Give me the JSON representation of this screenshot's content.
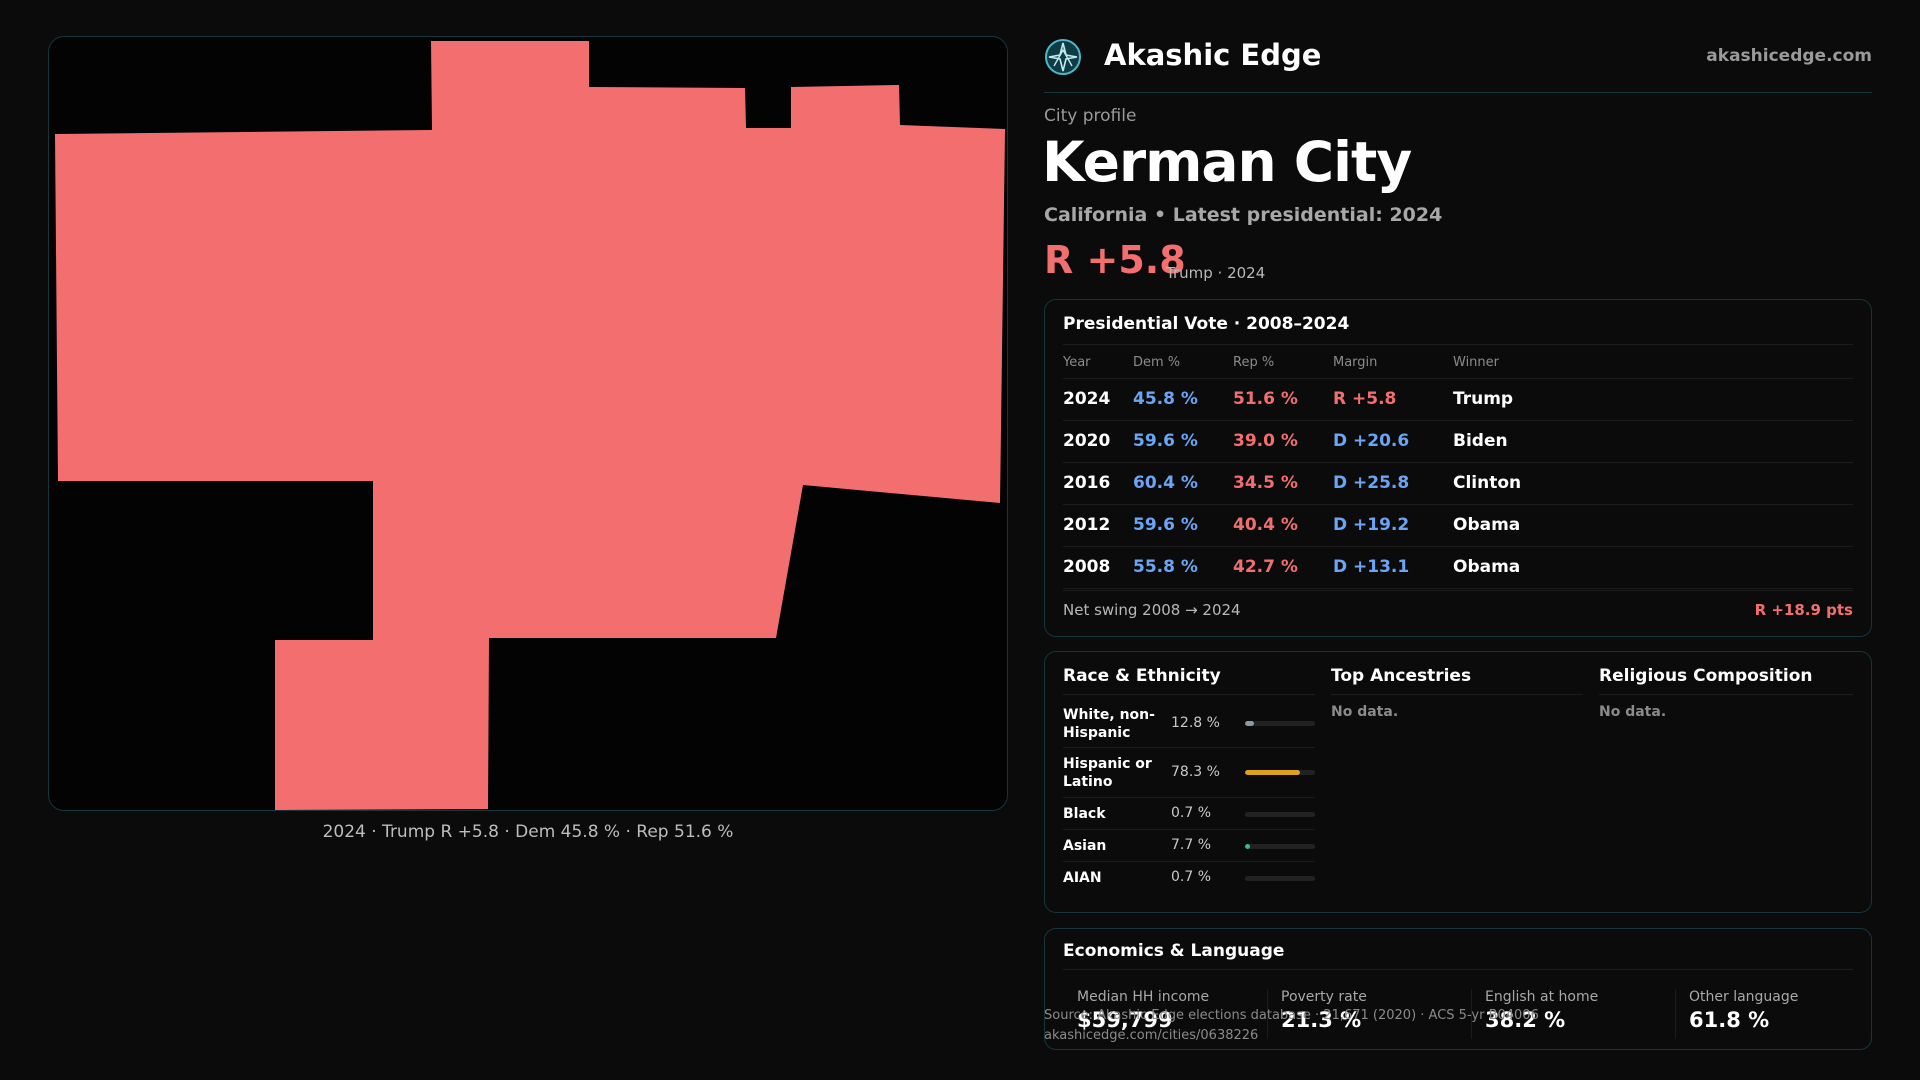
{
  "brand": {
    "name": "Akashic Edge",
    "domain": "akashicedge.com",
    "logo_icon": "compass-star-icon",
    "accent": "#4fb8c8"
  },
  "profile": {
    "eyebrow": "City profile",
    "city": "Kerman City",
    "subline": "California • Latest presidential: 2024",
    "margin": "R +5.8",
    "margin_note": "Trump · 2024"
  },
  "map": {
    "fill_color": "#f36f6f",
    "caption": "2024 · Trump R +5.8 · Dem 45.8 % · Rep 51.6 %"
  },
  "votes": {
    "title": "Presidential Vote · 2008–2024",
    "headers": [
      "Year",
      "Dem %",
      "Rep %",
      "Margin",
      "Winner"
    ],
    "rows": [
      {
        "year": "2024",
        "dem": "45.8 %",
        "rep": "51.6 %",
        "margin": "R +5.8",
        "party": "R",
        "winner": "Trump"
      },
      {
        "year": "2020",
        "dem": "59.6 %",
        "rep": "39.0 %",
        "margin": "D +20.6",
        "party": "D",
        "winner": "Biden"
      },
      {
        "year": "2016",
        "dem": "60.4 %",
        "rep": "34.5 %",
        "margin": "D +25.8",
        "party": "D",
        "winner": "Clinton"
      },
      {
        "year": "2012",
        "dem": "59.6 %",
        "rep": "40.4 %",
        "margin": "D +19.2",
        "party": "D",
        "winner": "Obama"
      },
      {
        "year": "2008",
        "dem": "55.8 %",
        "rep": "42.7 %",
        "margin": "D +13.1",
        "party": "D",
        "winner": "Obama"
      }
    ],
    "net_label": "Net swing 2008 → 2024",
    "net_value": "R +18.9 pts",
    "colors": {
      "D": "#6aa6f5",
      "R": "#f36f6f"
    }
  },
  "race": {
    "title": "Race & Ethnicity",
    "rows": [
      {
        "name": "White, non-Hispanic",
        "pct": "12.8 %",
        "value": 0.128,
        "color": "#8a9aa8"
      },
      {
        "name": "Hispanic or Latino",
        "pct": "78.3 %",
        "value": 0.783,
        "color": "#e0a020"
      },
      {
        "name": "Black",
        "pct": "0.7 %",
        "value": 0.007,
        "color": "#8a9aa8"
      },
      {
        "name": "Asian",
        "pct": "7.7 %",
        "value": 0.077,
        "color": "#2fc08a"
      },
      {
        "name": "AIAN",
        "pct": "0.7 %",
        "value": 0.007,
        "color": "#8a9aa8"
      }
    ]
  },
  "ancestries": {
    "title": "Top Ancestries",
    "empty": "No data."
  },
  "religion": {
    "title": "Religious Composition",
    "empty": "No data."
  },
  "economics": {
    "title": "Economics & Language",
    "stats": [
      {
        "label": "Median HH income",
        "value": "$59,799"
      },
      {
        "label": "Poverty rate",
        "value": "21.3 %"
      },
      {
        "label": "English at home",
        "value": "38.2 %"
      },
      {
        "label": "Other language",
        "value": "61.8 %"
      }
    ]
  },
  "source": {
    "line1": "Source: Akashic Edge elections database · 21,671 (2020) · ACS 5-yr B04006",
    "line2": "akashicedge.com/cities/0638226"
  }
}
